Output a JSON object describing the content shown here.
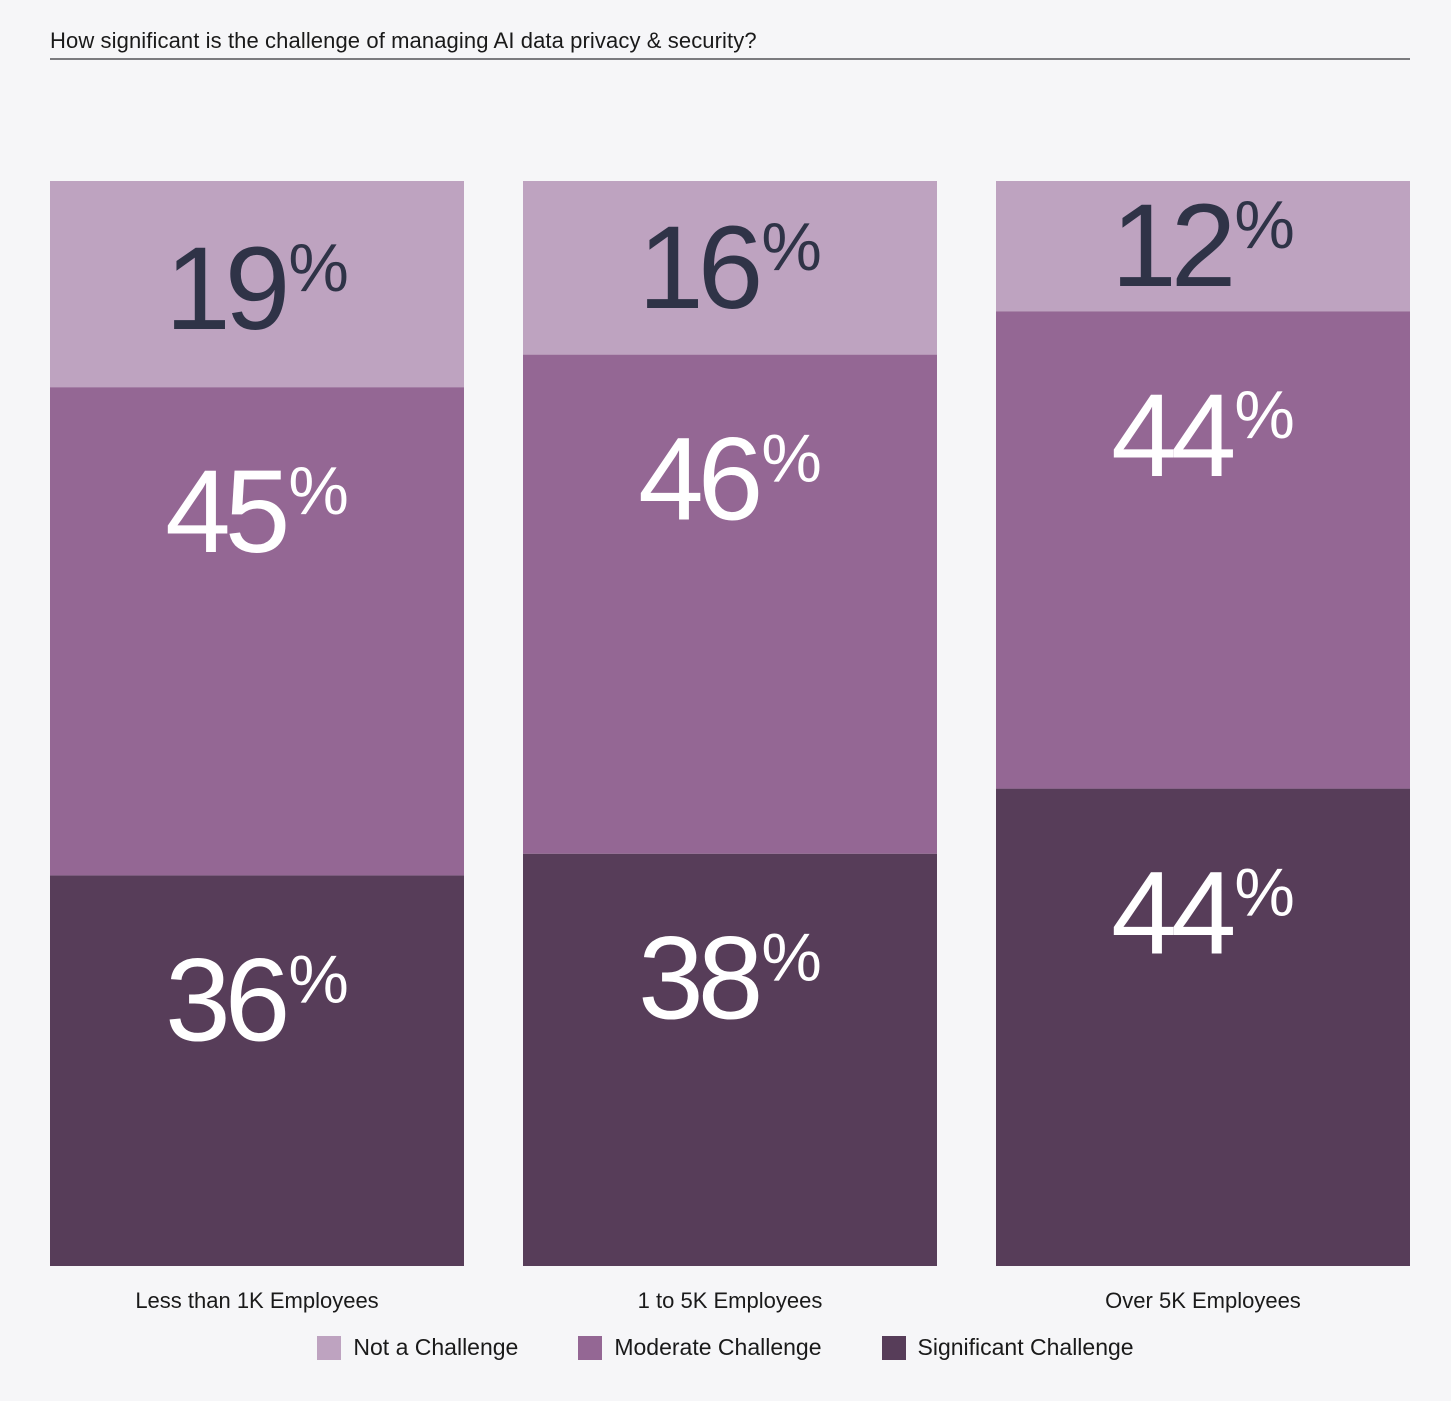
{
  "title": "How significant is the challenge of managing AI data privacy & security?",
  "colors": {
    "not": "#bea3c0",
    "moderate": "#946794",
    "significant": "#573d59",
    "label_dark": "#2f3347",
    "label_light": "#ffffff"
  },
  "chart_data": {
    "type": "bar",
    "stacked": true,
    "categories": [
      "Less than 1K Employees",
      "1 to 5K Employees",
      "Over 5K Employees"
    ],
    "series": [
      {
        "name": "Significant Challenge",
        "values": [
          36,
          38,
          44
        ],
        "color": "#573d59"
      },
      {
        "name": "Moderate Challenge",
        "values": [
          45,
          46,
          44
        ],
        "color": "#946794"
      },
      {
        "name": "Not a Challenge",
        "values": [
          19,
          16,
          12
        ],
        "color": "#bea3c0"
      }
    ],
    "unit": "%",
    "ylim": [
      0,
      100
    ],
    "legend_position": "bottom-center"
  },
  "legend": [
    {
      "label": "Not a Challenge",
      "color": "#bea3c0"
    },
    {
      "label": "Moderate Challenge",
      "color": "#946794"
    },
    {
      "label": "Significant Challenge",
      "color": "#573d59"
    }
  ]
}
